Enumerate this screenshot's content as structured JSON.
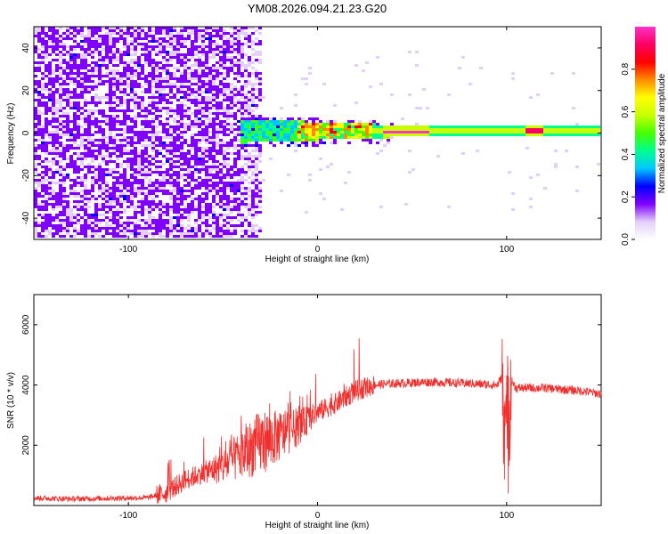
{
  "figure": {
    "title": "YM08.2026.094.21.23.G20"
  },
  "chart_data": [
    {
      "type": "heatmap",
      "xlabel": "Height of straight line (km)",
      "ylabel": "Frequency (Hz)",
      "xlim": [
        -150,
        150
      ],
      "ylim": [
        -50,
        50
      ],
      "x_ticks": [
        -100,
        0,
        100
      ],
      "y_ticks": [
        -40,
        -20,
        0,
        20,
        40
      ],
      "colorbar": {
        "label": "Normalized spectral amplitude",
        "range": [
          0,
          1
        ],
        "ticks": [
          "0.0",
          "0.2",
          "0.4",
          "0.6",
          "0.8"
        ],
        "colors": [
          "#ffffff",
          "#e3cff7",
          "#7f00ff",
          "#0000ff",
          "#00c8ff",
          "#00ff90",
          "#44ff00",
          "#c8ff00",
          "#ffff00",
          "#ff8c00",
          "#ff0000",
          "#ff0064",
          "#ff32c8"
        ]
      },
      "features": {
        "noise_region_x": [
          -150,
          -30
        ],
        "signal_band_center_hz": 0,
        "signal_band_start_x": -40,
        "peak_amplitude_x": [
          35,
          60
        ],
        "peak_amplitude_x2": [
          110,
          120
        ]
      }
    },
    {
      "type": "line",
      "xlabel": "Height of straight line (km)",
      "ylabel": "SNR (10 * v/v)",
      "xlim": [
        -150,
        150
      ],
      "ylim": [
        0,
        7000
      ],
      "x_ticks": [
        -100,
        0,
        100
      ],
      "y_ticks": [
        2000,
        4000,
        6000
      ],
      "series": [
        {
          "color": "#f0302e",
          "x": [
            -150,
            -130,
            -110,
            -90,
            -80,
            -70,
            -60,
            -50,
            -40,
            -30,
            -20,
            -10,
            0,
            10,
            20,
            30,
            40,
            60,
            80,
            95,
            98,
            100,
            102,
            105,
            120,
            140,
            150
          ],
          "y": [
            250,
            220,
            240,
            260,
            420,
            850,
            1100,
            1300,
            1700,
            2100,
            2300,
            2600,
            3100,
            3400,
            3800,
            4000,
            4050,
            4100,
            4050,
            4000,
            4300,
            2000,
            4200,
            3900,
            3900,
            3800,
            3700
          ]
        }
      ]
    }
  ]
}
